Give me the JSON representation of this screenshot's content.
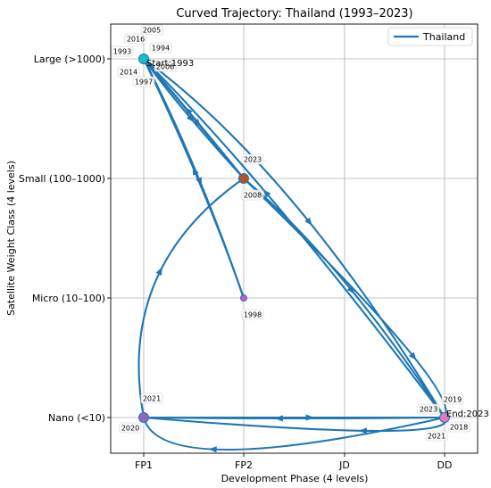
{
  "chart_data": {
    "type": "line",
    "title": "Curved Trajectory: Thailand (1993–2023)",
    "xlabel": "Development Phase (4 levels)",
    "ylabel": "Satellite Weight Class (4 levels)",
    "x_categories": [
      "FP1",
      "FP2",
      "JD",
      "DD"
    ],
    "y_categories": [
      "Nano (<10)",
      "Micro (10–100)",
      "Small (100–1000)",
      "Large (>1000)"
    ],
    "grid": true,
    "legend_position": "top-right",
    "series": [
      {
        "name": "Thailand",
        "color": "#1f77b4",
        "points": [
          {
            "year": 1993,
            "x": "FP1",
            "y": "Large (>1000)"
          },
          {
            "year": 1994,
            "x": "FP1",
            "y": "Large (>1000)"
          },
          {
            "year": 1997,
            "x": "FP1",
            "y": "Large (>1000)"
          },
          {
            "year": 1998,
            "x": "FP2",
            "y": "Micro (10–100)"
          },
          {
            "year": 2005,
            "x": "FP1",
            "y": "Large (>1000)"
          },
          {
            "year": 2006,
            "x": "FP1",
            "y": "Large (>1000)"
          },
          {
            "year": 2008,
            "x": "FP2",
            "y": "Small (100–1000)"
          },
          {
            "year": 2014,
            "x": "FP1",
            "y": "Large (>1000)"
          },
          {
            "year": 2016,
            "x": "FP1",
            "y": "Large (>1000)"
          },
          {
            "year": 2018,
            "x": "DD",
            "y": "Nano (<10)"
          },
          {
            "year": 2019,
            "x": "DD",
            "y": "Nano (<10)"
          },
          {
            "year": 2020,
            "x": "FP1",
            "y": "Nano (<10)"
          },
          {
            "year": 2021,
            "x": "FP1",
            "y": "Nano (<10)"
          },
          {
            "year": 2021,
            "x": "DD",
            "y": "Nano (<10)"
          },
          {
            "year": 2023,
            "x": "DD",
            "y": "Nano (<10)"
          },
          {
            "year": 2023,
            "x": "FP2",
            "y": "Small (100–1000)"
          }
        ]
      }
    ],
    "annotations": {
      "start": "Start:1993",
      "end": "End:2023",
      "year_labels": [
        {
          "text": "1993"
        },
        {
          "text": "2005"
        },
        {
          "text": "2016"
        },
        {
          "text": "1994"
        },
        {
          "text": "2014"
        },
        {
          "text": "2006"
        },
        {
          "text": "1997"
        },
        {
          "text": "2023"
        },
        {
          "text": "2008"
        },
        {
          "text": "1998"
        },
        {
          "text": "2021"
        },
        {
          "text": "2020"
        },
        {
          "text": "2019"
        },
        {
          "text": "2023"
        },
        {
          "text": "2021"
        },
        {
          "text": "2018"
        }
      ]
    },
    "markers": [
      {
        "x": "FP1",
        "y": "Large (>1000)",
        "color": "#17becf"
      },
      {
        "x": "FP2",
        "y": "Small (100–1000)",
        "color": "#b5522b"
      },
      {
        "x": "FP2",
        "y": "Micro (10–100)",
        "color": "#c05ecf"
      },
      {
        "x": "FP1",
        "y": "Nano (<10)",
        "color": "#9467bd"
      },
      {
        "x": "DD",
        "y": "Nano (<10)",
        "color": "#e377c2"
      }
    ]
  }
}
